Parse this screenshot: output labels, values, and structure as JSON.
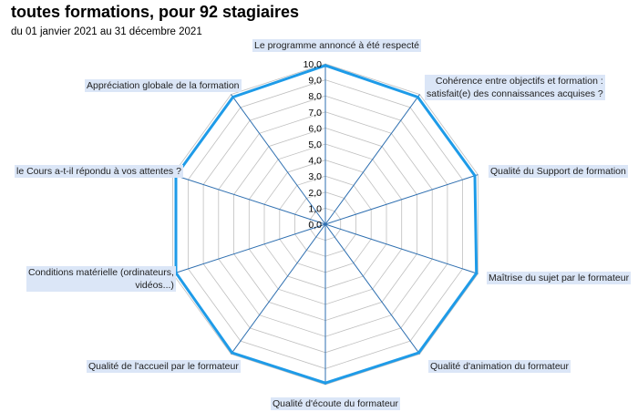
{
  "header": {
    "title": "toutes formations, pour 92 stagiaires",
    "subtitle": "du 01 janvier 2021 au 31 décembre 2021"
  },
  "colors": {
    "series": "#1e9be8",
    "axis": "#2e6fb0",
    "grid": "#bfbfbf",
    "label_bg": "#dbe6f7"
  },
  "chart_data": {
    "type": "radar",
    "title": "toutes formations, pour 92 stagiaires",
    "subtitle": "du 01 janvier 2021 au 31 décembre 2021",
    "rlim": [
      0,
      10
    ],
    "ticks": [
      "0,0",
      "1,0",
      "2,0",
      "3,0",
      "4,0",
      "5,0",
      "6,0",
      "7,0",
      "8,0",
      "9,0",
      "10,0"
    ],
    "grid": true,
    "categories": [
      "Le programme annoncé à été respecté",
      "Cohérence entre objectifs et formation : satisfait(e) des connaissances acquises ?",
      "Qualité du Support de formation",
      "Maîtrise du sujet par le formateur",
      "Qualité d'animation du formateur",
      "Qualité d'écoute du formateur",
      "Qualité de l'accueil par le formateur",
      "Conditions matérielle (ordinateurs, vidéos...)",
      "le Cours a-t-il répondu à vos attentes ?",
      "Appréciation globale de la formation"
    ],
    "series": [
      {
        "values": [
          9.9,
          9.8,
          9.8,
          9.9,
          9.9,
          9.9,
          9.9,
          9.8,
          9.8,
          9.8
        ]
      }
    ]
  }
}
